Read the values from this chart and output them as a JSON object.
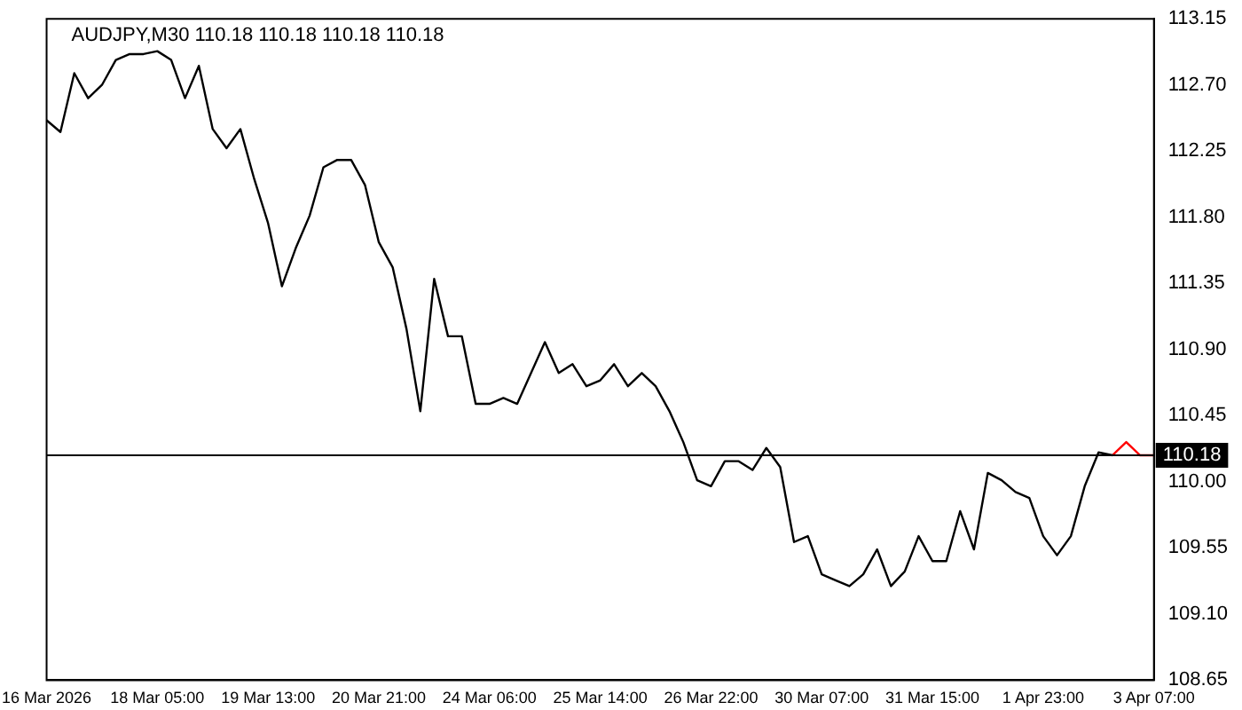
{
  "chart_data": {
    "type": "line",
    "title": "AUDJPY,M30 110.18 110.18 110.18 110.18",
    "categories": [
      "16 Mar 2026",
      null,
      null,
      null,
      null,
      null,
      null,
      null,
      "18 Mar 05:00",
      null,
      null,
      null,
      null,
      null,
      null,
      null,
      "19 Mar 13:00",
      null,
      null,
      null,
      null,
      null,
      null,
      null,
      "20 Mar 21:00",
      null,
      null,
      null,
      null,
      null,
      null,
      null,
      "24 Mar 06:00",
      null,
      null,
      null,
      null,
      null,
      null,
      null,
      "25 Mar 14:00",
      null,
      null,
      null,
      null,
      null,
      null,
      null,
      "26 Mar 22:00",
      null,
      null,
      null,
      null,
      null,
      null,
      null,
      "30 Mar 07:00",
      null,
      null,
      null,
      null,
      null,
      null,
      null,
      "31 Mar 15:00",
      null,
      null,
      null,
      null,
      null,
      null,
      null,
      "1 Apr 23:00",
      null,
      null,
      null,
      null,
      null,
      null,
      null,
      "3 Apr 07:00"
    ],
    "series": [
      {
        "color": "#000000",
        "values": [
          112.46,
          112.38,
          112.78,
          112.61,
          112.7,
          112.87,
          112.91,
          112.91,
          112.93,
          112.87,
          112.61,
          112.83,
          112.4,
          112.27,
          112.4,
          112.06,
          111.76,
          111.33,
          111.59,
          111.81,
          112.14,
          112.19,
          112.19,
          112.02,
          111.63,
          111.46,
          111.04,
          110.48,
          111.38,
          110.99,
          110.99,
          110.53,
          110.53,
          110.57,
          110.53,
          110.74,
          110.95,
          110.74,
          110.8,
          110.65,
          110.69,
          110.8,
          110.65,
          110.74,
          110.65,
          110.48,
          110.27,
          110.01,
          109.97,
          110.14,
          110.14,
          110.08,
          110.23,
          110.1,
          109.59,
          109.63,
          109.37,
          109.33,
          109.29,
          109.37,
          109.54,
          109.29,
          109.39,
          109.63,
          109.46,
          109.46,
          109.8,
          109.54,
          110.06,
          110.01,
          109.93,
          109.89,
          109.63,
          109.5,
          109.63,
          109.97,
          110.2,
          110.18,
          null,
          null,
          null
        ]
      },
      {
        "color": "#ff0000",
        "values": [
          null,
          null,
          null,
          null,
          null,
          null,
          null,
          null,
          null,
          null,
          null,
          null,
          null,
          null,
          null,
          null,
          null,
          null,
          null,
          null,
          null,
          null,
          null,
          null,
          null,
          null,
          null,
          null,
          null,
          null,
          null,
          null,
          null,
          null,
          null,
          null,
          null,
          null,
          null,
          null,
          null,
          null,
          null,
          null,
          null,
          null,
          null,
          null,
          null,
          null,
          null,
          null,
          null,
          null,
          null,
          null,
          null,
          null,
          null,
          null,
          null,
          null,
          null,
          null,
          null,
          null,
          null,
          null,
          null,
          null,
          null,
          null,
          null,
          null,
          null,
          null,
          null,
          110.18,
          110.27,
          110.18,
          110.18
        ]
      }
    ],
    "ylim": [
      108.65,
      113.15
    ],
    "yticks": [
      108.65,
      {
        "value": 109.1,
        "label": "109.10"
      },
      109.55,
      {
        "value": 110,
        "label": "110.00"
      },
      110.45,
      {
        "value": 110.9,
        "label": "110.90"
      },
      111.35,
      {
        "value": 111.8,
        "label": "111.80"
      },
      112.25,
      {
        "value": 112.7,
        "label": "112.70"
      },
      113.15
    ],
    "ref_lines": [
      {
        "axis": "y",
        "value": 110.18,
        "label": "110.18",
        "color": "#000000"
      }
    ],
    "grid": false,
    "legend": false,
    "marker": "none",
    "line_style": "solid"
  }
}
